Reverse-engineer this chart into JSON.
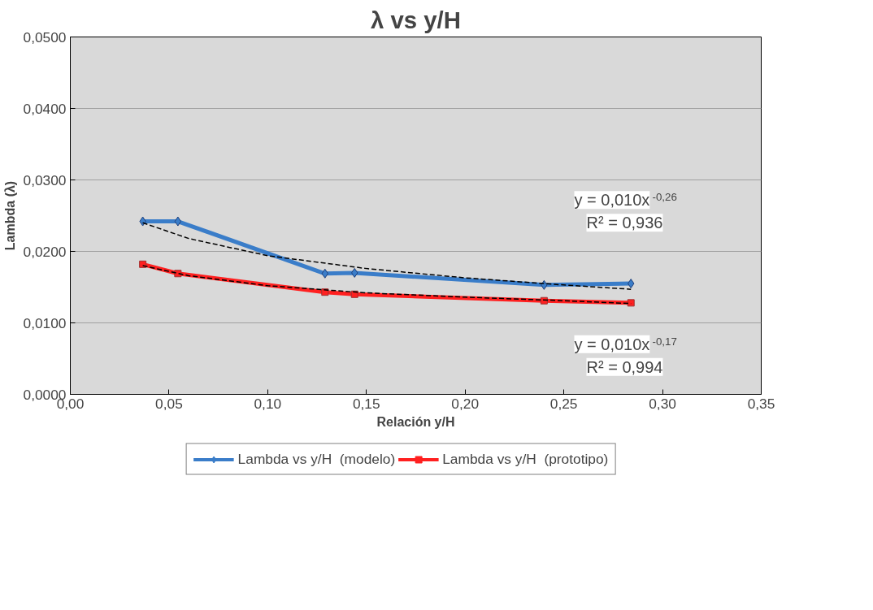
{
  "chart_data": {
    "type": "line",
    "title": "λ vs y/H",
    "xlabel": "Relación y/H",
    "ylabel": "Lambda (λ)",
    "xlim": [
      0,
      0.35
    ],
    "ylim": [
      0,
      0.05
    ],
    "xticks": [
      {
        "value": 0,
        "label": "0,00"
      },
      {
        "value": 0.05,
        "label": "0,05"
      },
      {
        "value": 0.1,
        "label": "0,10"
      },
      {
        "value": 0.15,
        "label": "0,15"
      },
      {
        "value": 0.2,
        "label": "0,20"
      },
      {
        "value": 0.25,
        "label": "0,25"
      },
      {
        "value": 0.3,
        "label": "0,30"
      },
      {
        "value": 0.35,
        "label": "0,35"
      }
    ],
    "yticks": [
      {
        "value": 0,
        "label": "0,0000"
      },
      {
        "value": 0.01,
        "label": "0,0100"
      },
      {
        "value": 0.02,
        "label": "0,0200"
      },
      {
        "value": 0.03,
        "label": "0,0300"
      },
      {
        "value": 0.04,
        "label": "0,0400"
      },
      {
        "value": 0.05,
        "label": "0,0500"
      }
    ],
    "grid": "y",
    "legend": "bottom",
    "x": [
      0.0367,
      0.0545,
      0.129,
      0.144,
      0.24,
      0.284
    ],
    "series": [
      {
        "name": "Lambda vs y/H  (modelo)",
        "color": "#3a7dc9",
        "marker": "diamond",
        "values": [
          0.0242,
          0.0242,
          0.0169,
          0.017,
          0.0153,
          0.0155
        ]
      },
      {
        "name": "Lambda vs y/H  (prototipo)",
        "color": "#ff2020",
        "marker": "square",
        "values": [
          0.0182,
          0.0169,
          0.0143,
          0.014,
          0.0131,
          0.0128
        ]
      },
      {
        "type": "line",
        "color": "#000000",
        "marker": "none",
        "line_style": "dashed",
        "x": [
          0.0367,
          0.06,
          0.1,
          0.15,
          0.2,
          0.25,
          0.284
        ],
        "values": [
          0.024,
          0.0218,
          0.0194,
          0.0176,
          0.0163,
          0.0153,
          0.0147
        ]
      },
      {
        "type": "line",
        "color": "#000000",
        "marker": "none",
        "line_style": "dashed",
        "x": [
          0.0367,
          0.06,
          0.1,
          0.15,
          0.2,
          0.25,
          0.284
        ],
        "values": [
          0.018,
          0.0166,
          0.0152,
          0.0142,
          0.0136,
          0.0131,
          0.0127
        ]
      }
    ],
    "annotations": [
      "y = 0,010x$^{-0,26}$\nR² = 0,936",
      "y = 0,010x$^{-0,17}$\nR² = 0,994"
    ]
  }
}
